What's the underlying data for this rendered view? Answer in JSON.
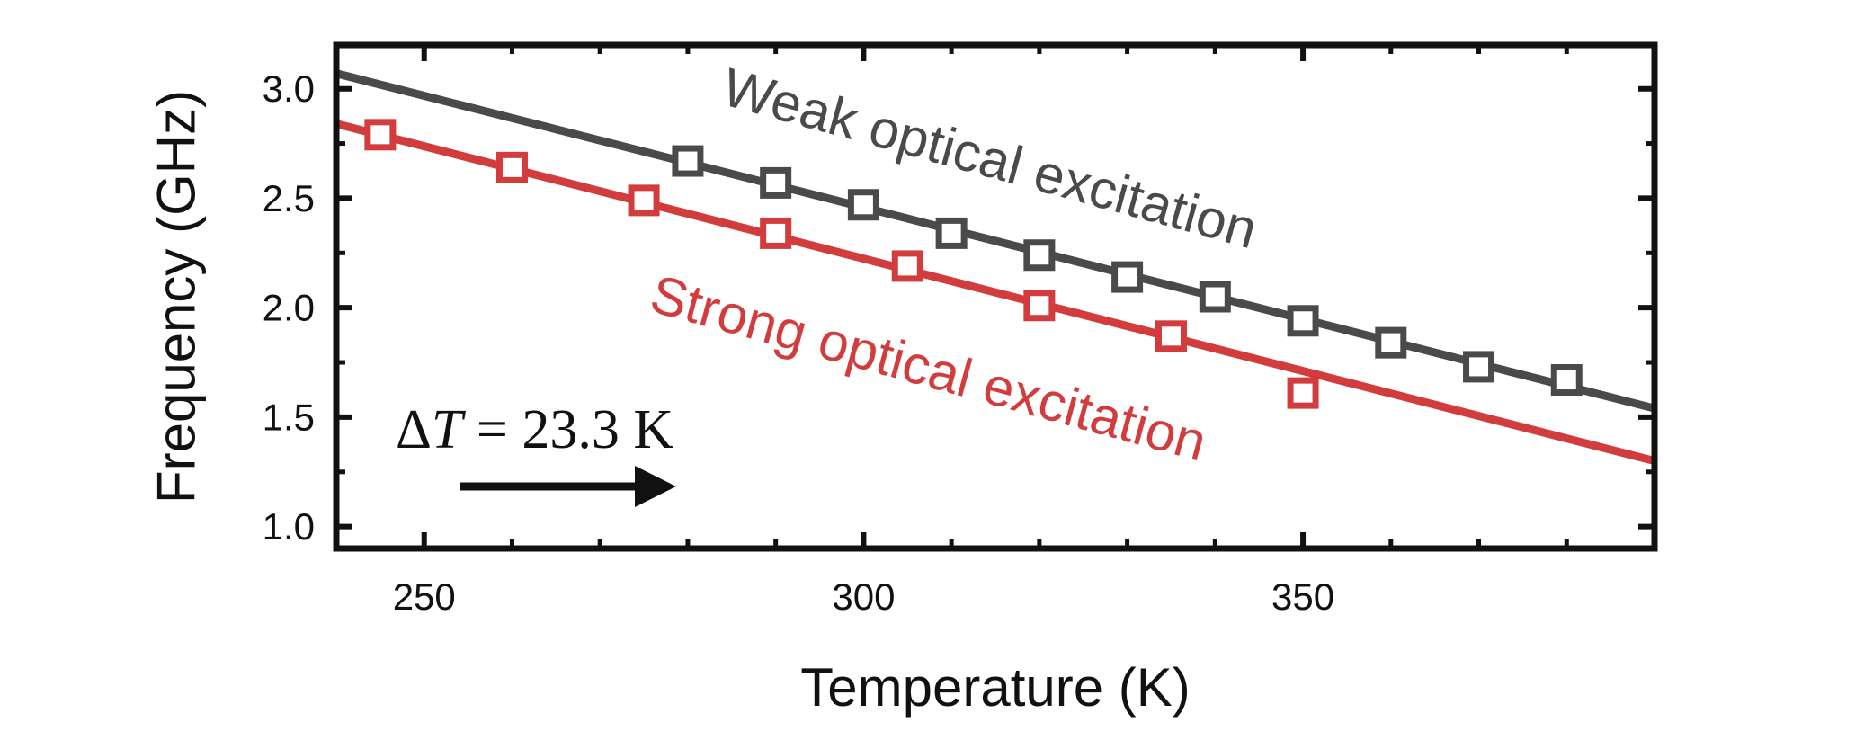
{
  "chart_data": {
    "type": "scatter",
    "title": "",
    "xlabel": "Temperature (K)",
    "ylabel": "Frequency (GHz)",
    "xlim": [
      240,
      390
    ],
    "ylim": [
      0.9,
      3.2
    ],
    "x_ticks": [
      250,
      300,
      350
    ],
    "x_tick_labels": [
      "250",
      "300",
      "350"
    ],
    "y_ticks": [
      1.0,
      1.5,
      2.0,
      2.5,
      3.0
    ],
    "y_tick_labels": [
      "1.0",
      "1.5",
      "2.0",
      "2.5",
      "3.0"
    ],
    "grid": false,
    "series": [
      {
        "name": "Weak optical excitation",
        "color": "#4a4a4a",
        "marker": "open-square",
        "x": [
          280,
          290,
          300,
          310,
          320,
          330,
          340,
          350,
          360,
          370,
          380
        ],
        "y": [
          2.67,
          2.57,
          2.47,
          2.34,
          2.24,
          2.14,
          2.05,
          1.94,
          1.84,
          1.73,
          1.67
        ],
        "fit_line": {
          "x": [
            240,
            390
          ],
          "y": [
            3.07,
            1.54
          ]
        }
      },
      {
        "name": "Strong optical excitation",
        "color": "#d23c3c",
        "marker": "open-square",
        "x": [
          245,
          260,
          275,
          290,
          305,
          320,
          335,
          350
        ],
        "y": [
          2.79,
          2.64,
          2.49,
          2.34,
          2.19,
          2.01,
          1.87,
          1.61
        ],
        "fit_line": {
          "x": [
            240,
            390
          ],
          "y": [
            2.84,
            1.3
          ]
        }
      }
    ],
    "annotations": [
      {
        "text_parts": [
          "Δ",
          "T",
          " = 23.3 K"
        ],
        "arrow_direction": "right"
      }
    ]
  }
}
